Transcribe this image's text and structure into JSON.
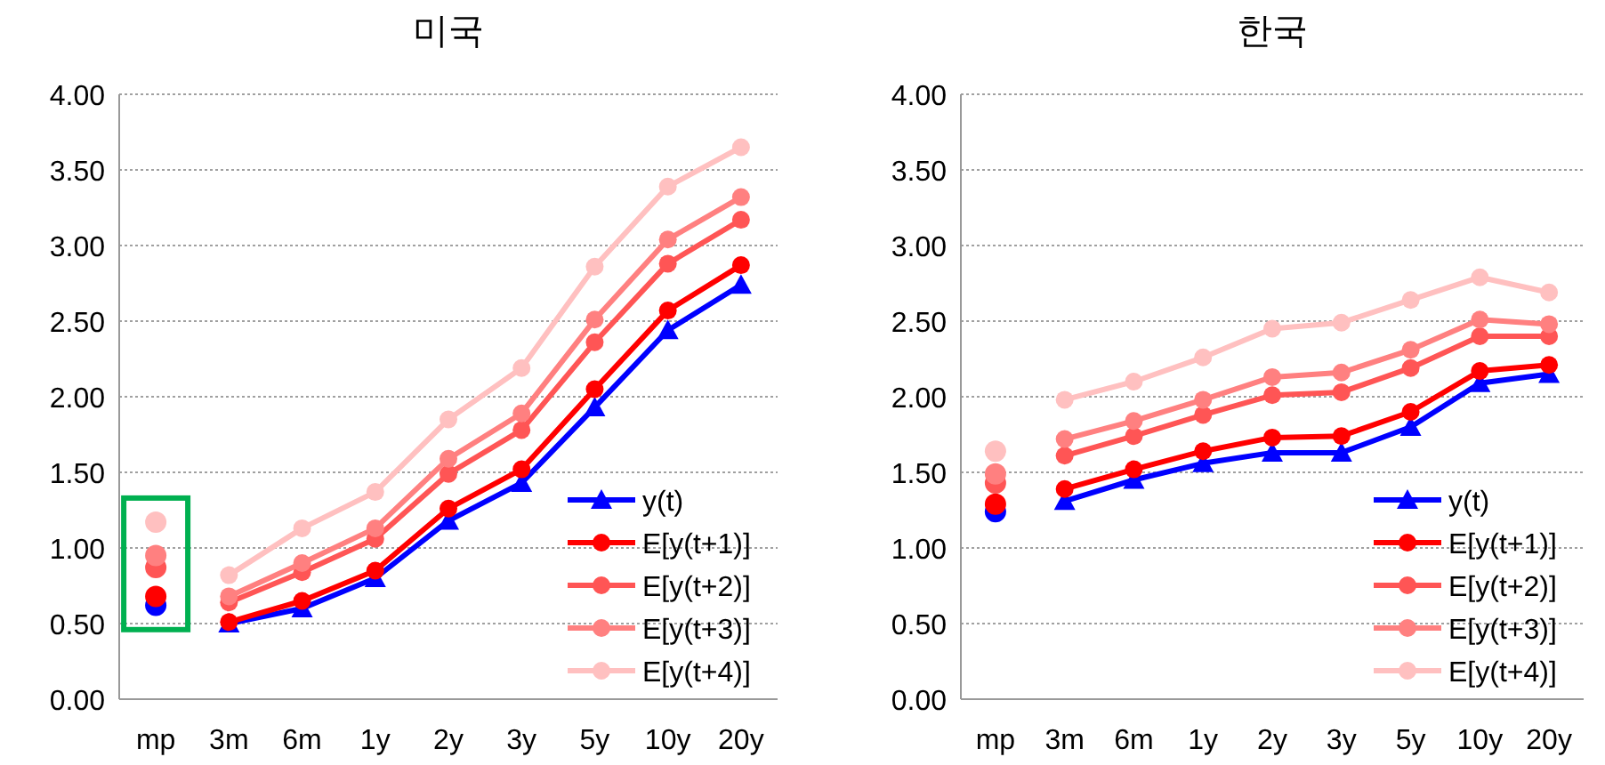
{
  "chart_data": [
    {
      "type": "line",
      "title": "미국",
      "categories": [
        "mp",
        "3m",
        "6m",
        "1y",
        "2y",
        "3y",
        "5y",
        "10y",
        "20y"
      ],
      "ylim": [
        0,
        4
      ],
      "yticks": [
        {
          "value": 0,
          "label": "0.00"
        },
        {
          "value": 0.5,
          "label": "0.50"
        },
        {
          "value": 1,
          "label": "1.00"
        },
        {
          "value": 1.5,
          "label": "1.50"
        },
        {
          "value": 2,
          "label": "2.00"
        },
        {
          "value": 2.5,
          "label": "2.50"
        },
        {
          "value": 3,
          "label": "3.00"
        },
        {
          "value": 3.5,
          "label": "3.50"
        },
        {
          "value": 4,
          "label": "4.00"
        }
      ],
      "grid": "y",
      "legend": "bottom right",
      "series": [
        {
          "name": "y(t)",
          "color": "#0000ff",
          "marker": "triangle",
          "values": [
            null,
            0.5,
            0.6,
            0.8,
            1.18,
            1.43,
            1.93,
            2.44,
            2.74
          ]
        },
        {
          "name": "E[y(t+1)]",
          "color": "#ff0000",
          "marker": "circle",
          "values": [
            null,
            0.51,
            0.65,
            0.85,
            1.26,
            1.52,
            2.05,
            2.57,
            2.87
          ]
        },
        {
          "name": "E[y(t+2)]",
          "color": "#ff5555",
          "marker": "circle",
          "values": [
            null,
            0.64,
            0.84,
            1.06,
            1.49,
            1.78,
            2.36,
            2.88,
            3.17
          ]
        },
        {
          "name": "E[y(t+3)]",
          "color": "#ff8080",
          "marker": "circle",
          "values": [
            null,
            0.68,
            0.9,
            1.13,
            1.59,
            1.89,
            2.51,
            3.04,
            3.32
          ]
        },
        {
          "name": "E[y(t+4)]",
          "color": "#ffc0c0",
          "marker": "circle",
          "values": [
            null,
            0.82,
            1.13,
            1.37,
            1.85,
            2.19,
            2.86,
            3.39,
            3.65
          ]
        },
        {
          "type": "scatter",
          "color": "#0000ff",
          "marker": "circle",
          "values": [
            0.62,
            null,
            null,
            null,
            null,
            null,
            null,
            null,
            null
          ]
        },
        {
          "type": "scatter",
          "color": "#ff0000",
          "marker": "circle",
          "values": [
            0.68,
            null,
            null,
            null,
            null,
            null,
            null,
            null,
            null
          ]
        },
        {
          "type": "scatter",
          "color": "#ff5555",
          "marker": "circle",
          "values": [
            0.87,
            null,
            null,
            null,
            null,
            null,
            null,
            null,
            null
          ]
        },
        {
          "type": "scatter",
          "color": "#ff8080",
          "marker": "circle",
          "values": [
            0.95,
            null,
            null,
            null,
            null,
            null,
            null,
            null,
            null
          ]
        },
        {
          "type": "scatter",
          "color": "#ffc0c0",
          "marker": "circle",
          "values": [
            1.17,
            null,
            null,
            null,
            null,
            null,
            null,
            null,
            null
          ]
        }
      ]
    },
    {
      "type": "line",
      "title": "한국",
      "categories": [
        "mp",
        "3m",
        "6m",
        "1y",
        "2y",
        "3y",
        "5y",
        "10y",
        "20y"
      ],
      "ylim": [
        0,
        4
      ],
      "yticks": [
        {
          "value": 0,
          "label": "0.00"
        },
        {
          "value": 0.5,
          "label": "0.50"
        },
        {
          "value": 1,
          "label": "1.00"
        },
        {
          "value": 1.5,
          "label": "1.50"
        },
        {
          "value": 2,
          "label": "2.00"
        },
        {
          "value": 2.5,
          "label": "2.50"
        },
        {
          "value": 3,
          "label": "3.00"
        },
        {
          "value": 3.5,
          "label": "3.50"
        },
        {
          "value": 4,
          "label": "4.00"
        }
      ],
      "grid": "y",
      "legend": "bottom right",
      "series": [
        {
          "name": "y(t)",
          "color": "#0000ff",
          "marker": "triangle",
          "values": [
            null,
            1.31,
            1.45,
            1.56,
            1.63,
            1.63,
            1.8,
            2.09,
            2.15
          ]
        },
        {
          "name": "E[y(t+1)]",
          "color": "#ff0000",
          "marker": "circle",
          "values": [
            null,
            1.39,
            1.52,
            1.64,
            1.73,
            1.74,
            1.9,
            2.17,
            2.21
          ]
        },
        {
          "name": "E[y(t+2)]",
          "color": "#ff5555",
          "marker": "circle",
          "values": [
            null,
            1.61,
            1.74,
            1.88,
            2.01,
            2.03,
            2.19,
            2.4,
            2.4
          ]
        },
        {
          "name": "E[y(t+3)]",
          "color": "#ff8080",
          "marker": "circle",
          "values": [
            null,
            1.72,
            1.84,
            1.98,
            2.13,
            2.16,
            2.31,
            2.51,
            2.48
          ]
        },
        {
          "name": "E[y(t+4)]",
          "color": "#ffc0c0",
          "marker": "circle",
          "values": [
            null,
            1.98,
            2.1,
            2.26,
            2.45,
            2.49,
            2.64,
            2.79,
            2.69
          ]
        },
        {
          "type": "scatter",
          "color": "#0000ff",
          "marker": "circle",
          "values": [
            1.24,
            null,
            null,
            null,
            null,
            null,
            null,
            null,
            null
          ]
        },
        {
          "type": "scatter",
          "color": "#ff0000",
          "marker": "circle",
          "values": [
            1.29,
            null,
            null,
            null,
            null,
            null,
            null,
            null,
            null
          ]
        },
        {
          "type": "scatter",
          "color": "#ff5555",
          "marker": "circle",
          "values": [
            1.43,
            null,
            null,
            null,
            null,
            null,
            null,
            null,
            null
          ]
        },
        {
          "type": "scatter",
          "color": "#ff8080",
          "marker": "circle",
          "values": [
            1.49,
            null,
            null,
            null,
            null,
            null,
            null,
            null,
            null
          ]
        },
        {
          "type": "scatter",
          "color": "#ffc0c0",
          "marker": "circle",
          "values": [
            1.64,
            null,
            null,
            null,
            null,
            null,
            null,
            null,
            null
          ]
        }
      ]
    }
  ]
}
